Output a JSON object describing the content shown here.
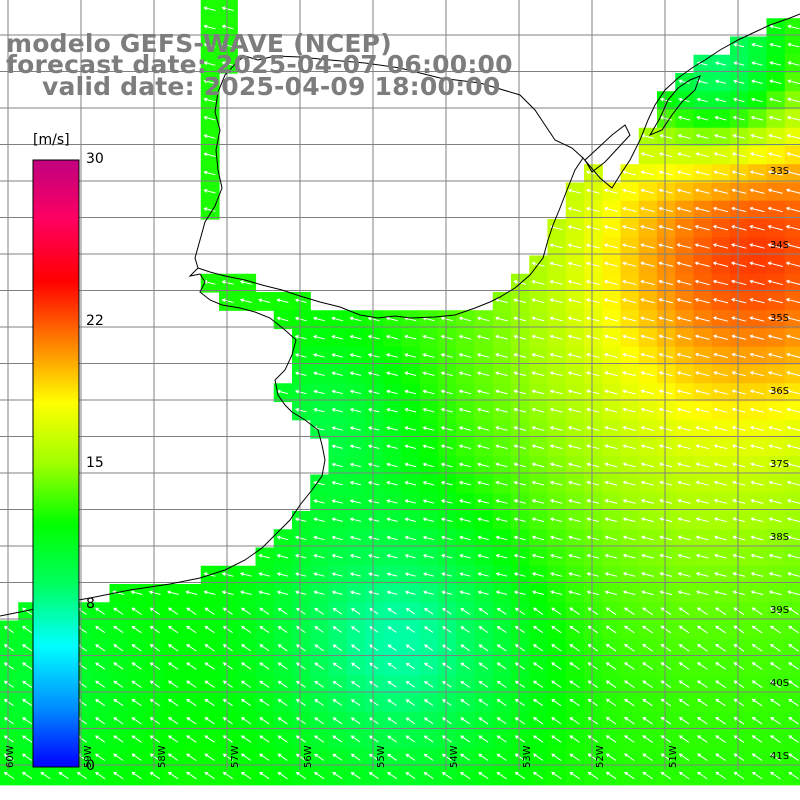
{
  "titles": {
    "model": "modelo GEFS-WAVE (NCEP)",
    "forecast": "forecast date: 2025-04-07 06:00:00",
    "valid": "valid date: 2025-04-09 18:00:00"
  },
  "colorbar": {
    "unit": "[m/s]",
    "ticks": [
      "30",
      "22",
      "15",
      "8",
      "0"
    ],
    "tick_values": [
      30,
      22,
      15,
      8,
      0
    ],
    "range": [
      0,
      30
    ],
    "colors": [
      "#0000ff",
      "#0090ff",
      "#00ffff",
      "#00ff60",
      "#00ff00",
      "#a0ff00",
      "#ffff00",
      "#ff8000",
      "#ff0000",
      "#ff0060",
      "#c00080"
    ]
  },
  "map": {
    "lat_labels": [
      "33S",
      "34S",
      "35S",
      "36S",
      "37S",
      "38S",
      "39S",
      "40S",
      "41S"
    ],
    "lon_labels": [
      "60W",
      "59W",
      "58W",
      "57W",
      "56W",
      "55W",
      "54W",
      "53W",
      "52W",
      "51W"
    ],
    "land_color": "#ffffff",
    "grid_color": "#808080"
  }
}
